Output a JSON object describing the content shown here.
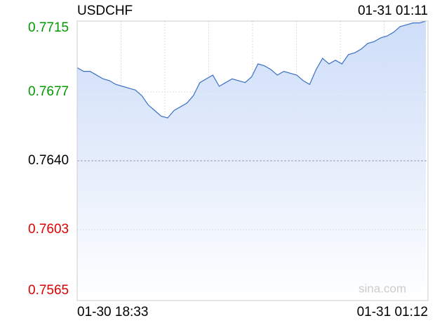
{
  "chart_data": {
    "type": "line",
    "title": "USDCHF",
    "timestamp": "01-31 01:11",
    "watermark": "sina.com",
    "x": [
      "01-30 18:33",
      null,
      null,
      null,
      null,
      null,
      null,
      null,
      null,
      null,
      null,
      null,
      null,
      null,
      null,
      null,
      null,
      null,
      null,
      null,
      null,
      null,
      null,
      null,
      null,
      null,
      null,
      null,
      null,
      null,
      null,
      null,
      null,
      null,
      null,
      null,
      null,
      null,
      null,
      null,
      null,
      null,
      null,
      null,
      null,
      null,
      null,
      null,
      null,
      null,
      null,
      null,
      null,
      null,
      "01-31 01:12"
    ],
    "series": [
      {
        "name": "USDCHF",
        "color": "#3a6fc4",
        "fill_color": "#c9daf8",
        "values": [
          0.769,
          0.7688,
          0.7688,
          0.7686,
          0.7684,
          0.7683,
          0.7681,
          0.768,
          0.7679,
          0.7678,
          0.7675,
          0.767,
          0.7667,
          0.7664,
          0.7663,
          0.7667,
          0.7669,
          0.7671,
          0.7675,
          0.7682,
          0.7684,
          0.7686,
          0.768,
          0.7682,
          0.7684,
          0.7683,
          0.7682,
          0.7685,
          0.7692,
          0.7691,
          0.7689,
          0.7686,
          0.7688,
          0.7687,
          0.7686,
          0.7683,
          0.7681,
          0.7689,
          0.7695,
          0.7692,
          0.7694,
          0.7692,
          0.7697,
          0.7698,
          0.77,
          0.7703,
          0.7704,
          0.7706,
          0.7707,
          0.7709,
          0.7712,
          0.7713,
          0.7714,
          0.7714,
          0.7715
        ]
      }
    ],
    "ylim": [
      0.7565,
      0.7715
    ],
    "yticks": [
      0.7715,
      0.7677,
      {
        "value": 0.764,
        "label": "0.7640"
      },
      0.7603,
      0.7565
    ],
    "reference": 0.764,
    "up_color": "#009900",
    "down_color": "#dd0000",
    "grid": true
  }
}
